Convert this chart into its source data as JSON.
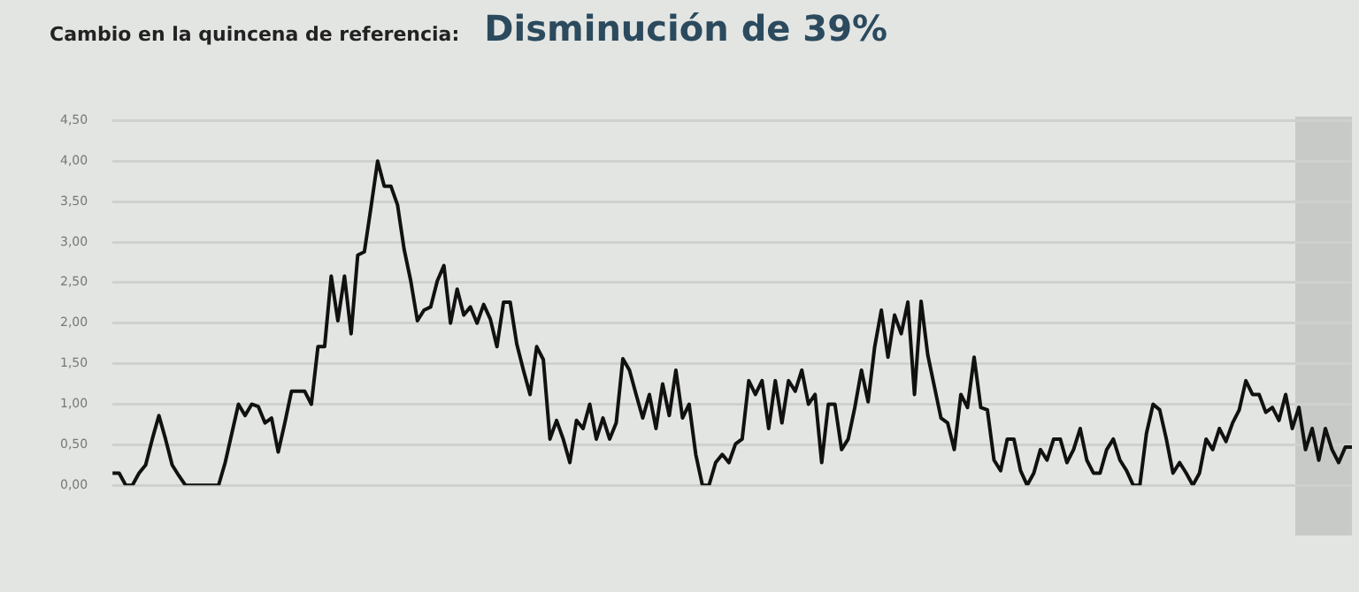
{
  "chart_data": {
    "type": "line",
    "title": "Cambio en la quincena de referencia:",
    "subtitle": "Disminución de 39%",
    "series": [
      {
        "color": "#111111",
        "values": [
          0.15,
          0.15,
          0,
          0,
          0.15,
          0.25,
          0.57,
          0.86,
          0.57,
          0.25,
          0.12,
          0,
          0,
          0,
          0,
          0,
          0,
          0.28,
          0.64,
          1.0,
          0.86,
          1.0,
          0.97,
          0.77,
          0.83,
          0.41,
          0.77,
          1.16,
          1.16,
          1.16,
          1.0,
          1.71,
          1.71,
          2.58,
          2.03,
          2.58,
          1.87,
          2.84,
          2.88,
          3.43,
          4.0,
          3.69,
          3.69,
          3.46,
          2.91,
          2.52,
          2.03,
          2.16,
          2.2,
          2.52,
          2.71,
          2.0,
          2.42,
          2.1,
          2.2,
          2.0,
          2.23,
          2.05,
          1.71,
          2.26,
          2.26,
          1.74,
          1.42,
          1.12,
          1.71,
          1.55,
          0.57,
          0.8,
          0.57,
          0.28,
          0.8,
          0.7,
          1.0,
          0.57,
          0.83,
          0.57,
          0.77,
          1.56,
          1.42,
          1.12,
          0.83,
          1.12,
          0.7,
          1.25,
          0.86,
          1.42,
          0.83,
          1.0,
          0.38,
          0,
          0,
          0.28,
          0.38,
          0.28,
          0.51,
          0.57,
          1.29,
          1.12,
          1.29,
          0.7,
          1.29,
          0.77,
          1.29,
          1.16,
          1.42,
          1.0,
          1.12,
          0.28,
          1.0,
          1.0,
          0.44,
          0.57,
          0.96,
          1.42,
          1.03,
          1.71,
          2.16,
          1.58,
          2.1,
          1.87,
          2.26,
          1.12,
          2.27,
          1.61,
          1.22,
          0.83,
          0.77,
          0.44,
          1.12,
          0.96,
          1.58,
          0.96,
          0.93,
          0.31,
          0.18,
          0.57,
          0.57,
          0.18,
          0,
          0.15,
          0.44,
          0.31,
          0.57,
          0.57,
          0.28,
          0.44,
          0.7,
          0.31,
          0.15,
          0.15,
          0.44,
          0.57,
          0.31,
          0.18,
          0,
          0,
          0.64,
          1.0,
          0.93,
          0.57,
          0.15,
          0.28,
          0.15,
          0,
          0.15,
          0.57,
          0.44,
          0.7,
          0.54,
          0.77,
          0.93,
          1.29,
          1.12,
          1.12,
          0.9,
          0.96,
          0.8,
          1.12,
          0.7,
          0.96,
          0.44,
          0.7,
          0.31,
          0.7,
          0.44,
          0.28,
          0.47,
          0.47
        ]
      }
    ],
    "categories": [
      null,
      null,
      null,
      null,
      null,
      null,
      null,
      null,
      null,
      null,
      null,
      null,
      null,
      null,
      null,
      null,
      null,
      null,
      null,
      null,
      null,
      null,
      null,
      null,
      null,
      null,
      null,
      null,
      null,
      null,
      null,
      null,
      null,
      null,
      null,
      null,
      null,
      null,
      null,
      null,
      null,
      null,
      null,
      null,
      null,
      null,
      null,
      null,
      null,
      null,
      null,
      null,
      null,
      null,
      null,
      null,
      null,
      null,
      null,
      null,
      null,
      null,
      null,
      null,
      null,
      null,
      null,
      null,
      null,
      null,
      null,
      null,
      null,
      null,
      null,
      null,
      null,
      null,
      null,
      null,
      null,
      null,
      null,
      null,
      null,
      null,
      null,
      null,
      null,
      null,
      null,
      null,
      null,
      null,
      null,
      null,
      null,
      null,
      null,
      null,
      null,
      null,
      null,
      null,
      null,
      null,
      null,
      null,
      null,
      null,
      null,
      null,
      null,
      null,
      null,
      null,
      null,
      null,
      null,
      null,
      null,
      null,
      null,
      null,
      null,
      null,
      null,
      null,
      null,
      null,
      null,
      null,
      null,
      null,
      null,
      null,
      null,
      null,
      null,
      null,
      null,
      null,
      null,
      null,
      null,
      null,
      null,
      null,
      null,
      null,
      null,
      null,
      null,
      null,
      null,
      null,
      null,
      null,
      null,
      null,
      null,
      null,
      null,
      null,
      null,
      null,
      null,
      null,
      null,
      null,
      null,
      null,
      null,
      null,
      null,
      null,
      null,
      null,
      null,
      null,
      null,
      null,
      null,
      null,
      null,
      null,
      null,
      null
    ],
    "ylim": [
      0,
      4.5
    ],
    "yticks": [
      {
        "value": 0,
        "label": "0,00"
      },
      {
        "value": 0.5,
        "label": "0,50"
      },
      {
        "value": 1,
        "label": "1,00"
      },
      {
        "value": 1.5,
        "label": "1,50"
      },
      {
        "value": 2,
        "label": "2,00"
      },
      {
        "value": 2.5,
        "label": "2,50"
      },
      {
        "value": 3,
        "label": "3,00"
      },
      {
        "value": 3.5,
        "label": "3,50"
      },
      {
        "value": 4,
        "label": "4,00"
      },
      {
        "value": 4.5,
        "label": "4,50"
      }
    ],
    "grid": "y",
    "legend": false,
    "marker": "none",
    "line_style": "solid"
  }
}
